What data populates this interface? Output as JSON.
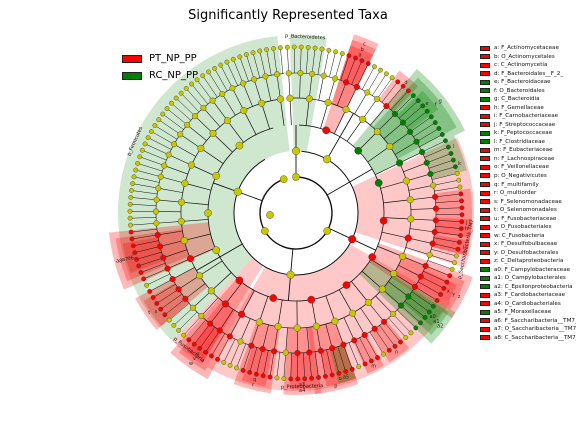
{
  "title": "Significantly Represented Taxa",
  "colors": {
    "PT_NP_PP": "#ff0000",
    "RC_NP_PP": "#008000",
    "PT_NP_PP_light": "#ffc8c8",
    "RC_NP_PP_light": "#cfe6cf",
    "neutral_node": "#c8c800"
  },
  "groups": [
    {
      "name": "PT_NP_PP",
      "color": "#ff0000"
    },
    {
      "name": "RC_NP_PP",
      "color": "#008000"
    }
  ],
  "chart_data": {
    "type": "cladogram",
    "title": "Significantly Represented Taxa",
    "rings": [
      "kingdom",
      "phylum",
      "class",
      "order",
      "family",
      "genus"
    ],
    "phylum_sectors": [
      {
        "label": "p_Firmicutes",
        "group": "RC_NP_PP"
      },
      {
        "label": "p_Bacteroidetes",
        "group": "RC_NP_PP"
      },
      {
        "label": "p_Saccharibacteria_TM7",
        "group": "PT_NP_PP"
      },
      {
        "label": "p_Proteobacteria",
        "group": "PT_NP_PP"
      },
      {
        "label": "p_Fusobacteria",
        "group": "PT_NP_PP"
      }
    ],
    "clades": [
      {
        "key": "a",
        "name": "F_Actinomycetaceae",
        "group": "PT_NP_PP"
      },
      {
        "key": "b",
        "name": "O_Actinomycetales",
        "group": "PT_NP_PP"
      },
      {
        "key": "c",
        "name": "C_Actinomycetia",
        "group": "PT_NP_PP"
      },
      {
        "key": "d",
        "name": "F_Bacteroidales__F_2_",
        "group": "PT_NP_PP"
      },
      {
        "key": "e",
        "name": "F_Bacteroidaceae",
        "group": "RC_NP_PP"
      },
      {
        "key": "f",
        "name": "O_Bacteroidales",
        "group": "RC_NP_PP"
      },
      {
        "key": "g",
        "name": "C_Bacteroidia",
        "group": "RC_NP_PP"
      },
      {
        "key": "h",
        "name": "F_Gemellaceae",
        "group": "PT_NP_PP"
      },
      {
        "key": "i",
        "name": "F_Carnobacteriaceae",
        "group": "PT_NP_PP"
      },
      {
        "key": "j",
        "name": "F_Streptococcaceae",
        "group": "PT_NP_PP"
      },
      {
        "key": "k",
        "name": "F_Peptococcaceae",
        "group": "RC_NP_PP"
      },
      {
        "key": "l",
        "name": "F_Clostridiaceae",
        "group": "RC_NP_PP"
      },
      {
        "key": "m",
        "name": "F_Eubacteriaceae",
        "group": "PT_NP_PP"
      },
      {
        "key": "n",
        "name": "F_Lachnospiraceae",
        "group": "PT_NP_PP"
      },
      {
        "key": "o",
        "name": "F_Veillonellaceae",
        "group": "PT_NP_PP"
      },
      {
        "key": "p",
        "name": "O_Negativicutes",
        "group": "PT_NP_PP"
      },
      {
        "key": "q",
        "name": "F_multifamily",
        "group": "PT_NP_PP"
      },
      {
        "key": "r",
        "name": "O_multiorder",
        "group": "PT_NP_PP"
      },
      {
        "key": "s",
        "name": "F_Selenomonadaceae",
        "group": "PT_NP_PP"
      },
      {
        "key": "t",
        "name": "O_Selenomonadales",
        "group": "PT_NP_PP"
      },
      {
        "key": "u",
        "name": "F_Fusobacteriaceae",
        "group": "PT_NP_PP"
      },
      {
        "key": "v",
        "name": "O_Fusobacteriales",
        "group": "PT_NP_PP"
      },
      {
        "key": "w",
        "name": "C_Fusobacteria",
        "group": "PT_NP_PP"
      },
      {
        "key": "x",
        "name": "F_Desulfobulbaceae",
        "group": "PT_NP_PP"
      },
      {
        "key": "y",
        "name": "O_Desulfobacterales",
        "group": "PT_NP_PP"
      },
      {
        "key": "z",
        "name": "C_Deltaproteobacteria",
        "group": "PT_NP_PP"
      },
      {
        "key": "a0",
        "name": "F_Campylobacteraceae",
        "group": "RC_NP_PP"
      },
      {
        "key": "a1",
        "name": "O_Campylobacterales",
        "group": "RC_NP_PP"
      },
      {
        "key": "a2",
        "name": "C_Epsilonproteobacteria",
        "group": "RC_NP_PP"
      },
      {
        "key": "a3",
        "name": "F_Cardiobacteriaceae",
        "group": "PT_NP_PP"
      },
      {
        "key": "a4",
        "name": "O_Cardiobacteriales",
        "group": "PT_NP_PP"
      },
      {
        "key": "a5",
        "name": "F_Moraxellaceae",
        "group": "RC_NP_PP"
      },
      {
        "key": "a6",
        "name": "F_Saccharibacteria__TM7_",
        "group": "PT_NP_PP"
      },
      {
        "key": "a7",
        "name": "O_Saccharibacteria__TM7_",
        "group": "PT_NP_PP"
      },
      {
        "key": "a8",
        "name": "C_Saccharibacteria__TM7_",
        "group": "PT_NP_PP"
      }
    ]
  }
}
